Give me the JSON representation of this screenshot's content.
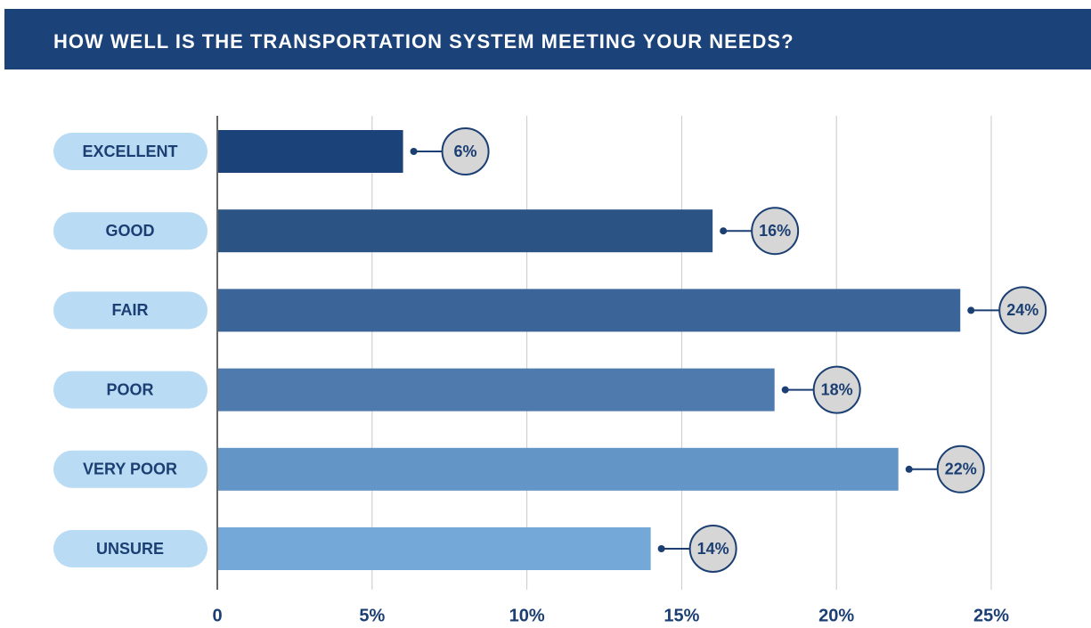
{
  "chart_data": {
    "type": "bar",
    "orientation": "horizontal",
    "title": "HOW WELL IS THE TRANSPORTATION SYSTEM MEETING YOUR NEEDS?",
    "categories": [
      "EXCELLENT",
      "GOOD",
      "FAIR",
      "POOR",
      "VERY POOR",
      "UNSURE"
    ],
    "values": [
      6,
      16,
      24,
      18,
      22,
      14
    ],
    "value_labels": [
      "6%",
      "16%",
      "24%",
      "18%",
      "22%",
      "14%"
    ],
    "colors": [
      "#1b4279",
      "#2b5485",
      "#3b6599",
      "#4f7aae",
      "#6495c7",
      "#73a8d9"
    ],
    "xlim": [
      0,
      25
    ],
    "xticks": [
      0,
      {
        "value": 5,
        "label": "5%"
      },
      {
        "value": 10,
        "label": "10%"
      },
      {
        "value": 15,
        "label": "15%"
      },
      {
        "value": 20,
        "label": "20%"
      },
      {
        "value": 25,
        "label": "25%"
      }
    ],
    "grid": true
  }
}
